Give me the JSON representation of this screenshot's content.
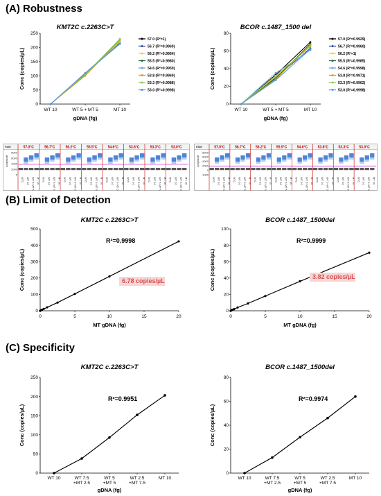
{
  "sections": {
    "a": "(A) Robustness",
    "b": "(B) Limit of Detection",
    "c": "(C) Specificity"
  },
  "chart_data": [
    {
      "id": "a-kmt2c",
      "type": "line",
      "title": "KMT2C c.2263C>T",
      "xlabel": "gDNA (fg)",
      "ylabel": "Conc (copies/µL)",
      "categories": [
        "WT 10",
        "WT 5 + MT 5",
        "MT 10"
      ],
      "ylim": [
        0,
        250
      ],
      "yticks": [
        0,
        50,
        100,
        150,
        200,
        250
      ],
      "legend": "right",
      "series": [
        {
          "name": "57.0 (R²=1)",
          "color": "#000000",
          "values": [
            0,
            108,
            214
          ]
        },
        {
          "name": "56.7 (R²=0.9969)",
          "color": "#2e4fa3",
          "values": [
            0,
            106,
            218
          ]
        },
        {
          "name": "56.2 (R²=0.9954)",
          "color": "#e8d23a",
          "values": [
            0,
            103,
            222
          ]
        },
        {
          "name": "55.5 (R²=0.9980)",
          "color": "#1f6f3a",
          "values": [
            0,
            105,
            228
          ]
        },
        {
          "name": "54.6 (R²=0.9959)",
          "color": "#6fa8dc",
          "values": [
            0,
            110,
            216
          ]
        },
        {
          "name": "53.8 (R²=0.9969)",
          "color": "#c9a227",
          "values": [
            0,
            100,
            226
          ]
        },
        {
          "name": "53.3 (R²=0.9988)",
          "color": "#8fc95a",
          "values": [
            0,
            104,
            230
          ]
        },
        {
          "name": "53.0 (R²=0.9998)",
          "color": "#5b9bd5",
          "values": [
            0,
            109,
            212
          ]
        }
      ]
    },
    {
      "id": "a-bcor",
      "type": "line",
      "title": "BCOR c.1487_1500 del",
      "xlabel": "gDNA (fg)",
      "ylabel": "Conc (copies/µL)",
      "categories": [
        "WT 10",
        "WT 5 + MT 5",
        "MT 10"
      ],
      "ylim": [
        0,
        80
      ],
      "yticks": [
        0,
        20,
        40,
        60,
        80
      ],
      "legend": "right",
      "series": [
        {
          "name": "57.0 (R²=0.9929)",
          "color": "#000000",
          "values": [
            0,
            33,
            70
          ]
        },
        {
          "name": "56.7 (R²=0.9960)",
          "color": "#2e4fa3",
          "values": [
            0,
            30,
            63
          ]
        },
        {
          "name": "56.2 (R²=1)",
          "color": "#e8d23a",
          "values": [
            0,
            31,
            66
          ]
        },
        {
          "name": "55.5 (R²=0.9985)",
          "color": "#1f6f3a",
          "values": [
            0,
            29,
            68
          ]
        },
        {
          "name": "54.6 (R²=0.9998)",
          "color": "#6fa8dc",
          "values": [
            0,
            35,
            61
          ]
        },
        {
          "name": "53.8 (R²=0.9971)",
          "color": "#c9a227",
          "values": [
            0,
            28,
            67
          ]
        },
        {
          "name": "53.3 (R²=0.9962)",
          "color": "#8fc95a",
          "values": [
            0,
            32,
            65
          ]
        },
        {
          "name": "53.0 (R²=0.9998)",
          "color": "#5b9bd5",
          "values": [
            0,
            27,
            62
          ]
        }
      ]
    },
    {
      "id": "a-ddpcr-kmt2c",
      "type": "scatter",
      "channel": "FAM",
      "ylabel": "Amplitude",
      "yticks": [
        "8000",
        "6000",
        "4000",
        "2000",
        "0"
      ],
      "temperatures": [
        "57.0°C",
        "56.7°C",
        "56.2°C",
        "55.5°C",
        "54.6°C",
        "53.8°C",
        "53.3°C",
        "53.0°C"
      ],
      "wells": [
        "NTC",
        "WT 10",
        "WT 5 MT 5",
        "MT 10"
      ]
    },
    {
      "id": "a-ddpcr-bcor",
      "type": "scatter",
      "channel": "FAM",
      "ylabel": "Amplitude",
      "yticks": [
        "8000",
        "6000",
        "4000",
        "2000",
        "0",
        "-1000"
      ],
      "temperatures": [
        "57.0°C",
        "56.7°C",
        "56.2°C",
        "55.5°C",
        "54.6°C",
        "53.8°C",
        "53.3°C",
        "53.0°C"
      ],
      "wells": [
        "NTC",
        "WT 10",
        "WT 5 MT 5",
        "MT 10"
      ]
    },
    {
      "id": "b-kmt2c",
      "type": "line",
      "title": "KMT2C c.2263C>T",
      "xlabel": "MT gDNA (fg)",
      "ylabel": "Conc (copies/µL)",
      "xlim": [
        0,
        20
      ],
      "xticks": [
        0,
        5,
        10,
        15,
        20
      ],
      "ylim": [
        0,
        500
      ],
      "yticks": [
        0,
        100,
        200,
        300,
        400,
        500
      ],
      "r2": "R²=0.9998",
      "lod": "6.78 copies/µL",
      "x": [
        0,
        0.1,
        0.25,
        0.5,
        1,
        2.5,
        5,
        10,
        20
      ],
      "y": [
        0,
        3,
        6,
        11,
        21,
        50,
        103,
        210,
        424
      ]
    },
    {
      "id": "b-bcor",
      "type": "line",
      "title": "BCOR c.1487_1500del",
      "xlabel": "MT gDNA (fg)",
      "ylabel": "Conc (copies/µL)",
      "xlim": [
        0,
        20
      ],
      "xticks": [
        0,
        5,
        10,
        15,
        20
      ],
      "ylim": [
        0,
        100
      ],
      "yticks": [
        0,
        20,
        40,
        60,
        80,
        100
      ],
      "r2": "R²=0.9999",
      "lod": "3.82 copies/µL",
      "x": [
        0,
        0.1,
        0.25,
        0.5,
        1,
        2.5,
        5,
        10,
        20
      ],
      "y": [
        0,
        0.6,
        1.2,
        2,
        4,
        9,
        18,
        36,
        71
      ]
    },
    {
      "id": "c-kmt2c",
      "type": "line",
      "title": "KMT2C c.2263C>T",
      "xlabel": "gDNA (fg)",
      "ylabel": "Conc (copies/µL)",
      "categories": [
        "WT 10",
        "WT 7.5\n+MT 2.5",
        "WT 5\n+MT 5",
        "WT 2.5\n+MT 7.5",
        "MT 10"
      ],
      "ylim": [
        0,
        250
      ],
      "yticks": [
        0,
        50,
        100,
        150,
        200,
        250
      ],
      "r2": "R²=0.9951",
      "values": [
        0,
        38,
        93,
        152,
        203
      ]
    },
    {
      "id": "c-bcor",
      "type": "line",
      "title": "BCOR c.1487_1500del",
      "xlabel": "gDNA (fg)",
      "ylabel": "Conc (copies/µL)",
      "categories": [
        "WT 10",
        "WT 7.5\n+MT 2.5",
        "WT 5\n+MT 5",
        "WT 2.5\n+MT 7.5",
        "MT 10"
      ],
      "ylim": [
        0,
        80
      ],
      "yticks": [
        0,
        20,
        40,
        60,
        80
      ],
      "r2": "R²=0.9974",
      "values": [
        0,
        13,
        30,
        46,
        64
      ]
    }
  ]
}
